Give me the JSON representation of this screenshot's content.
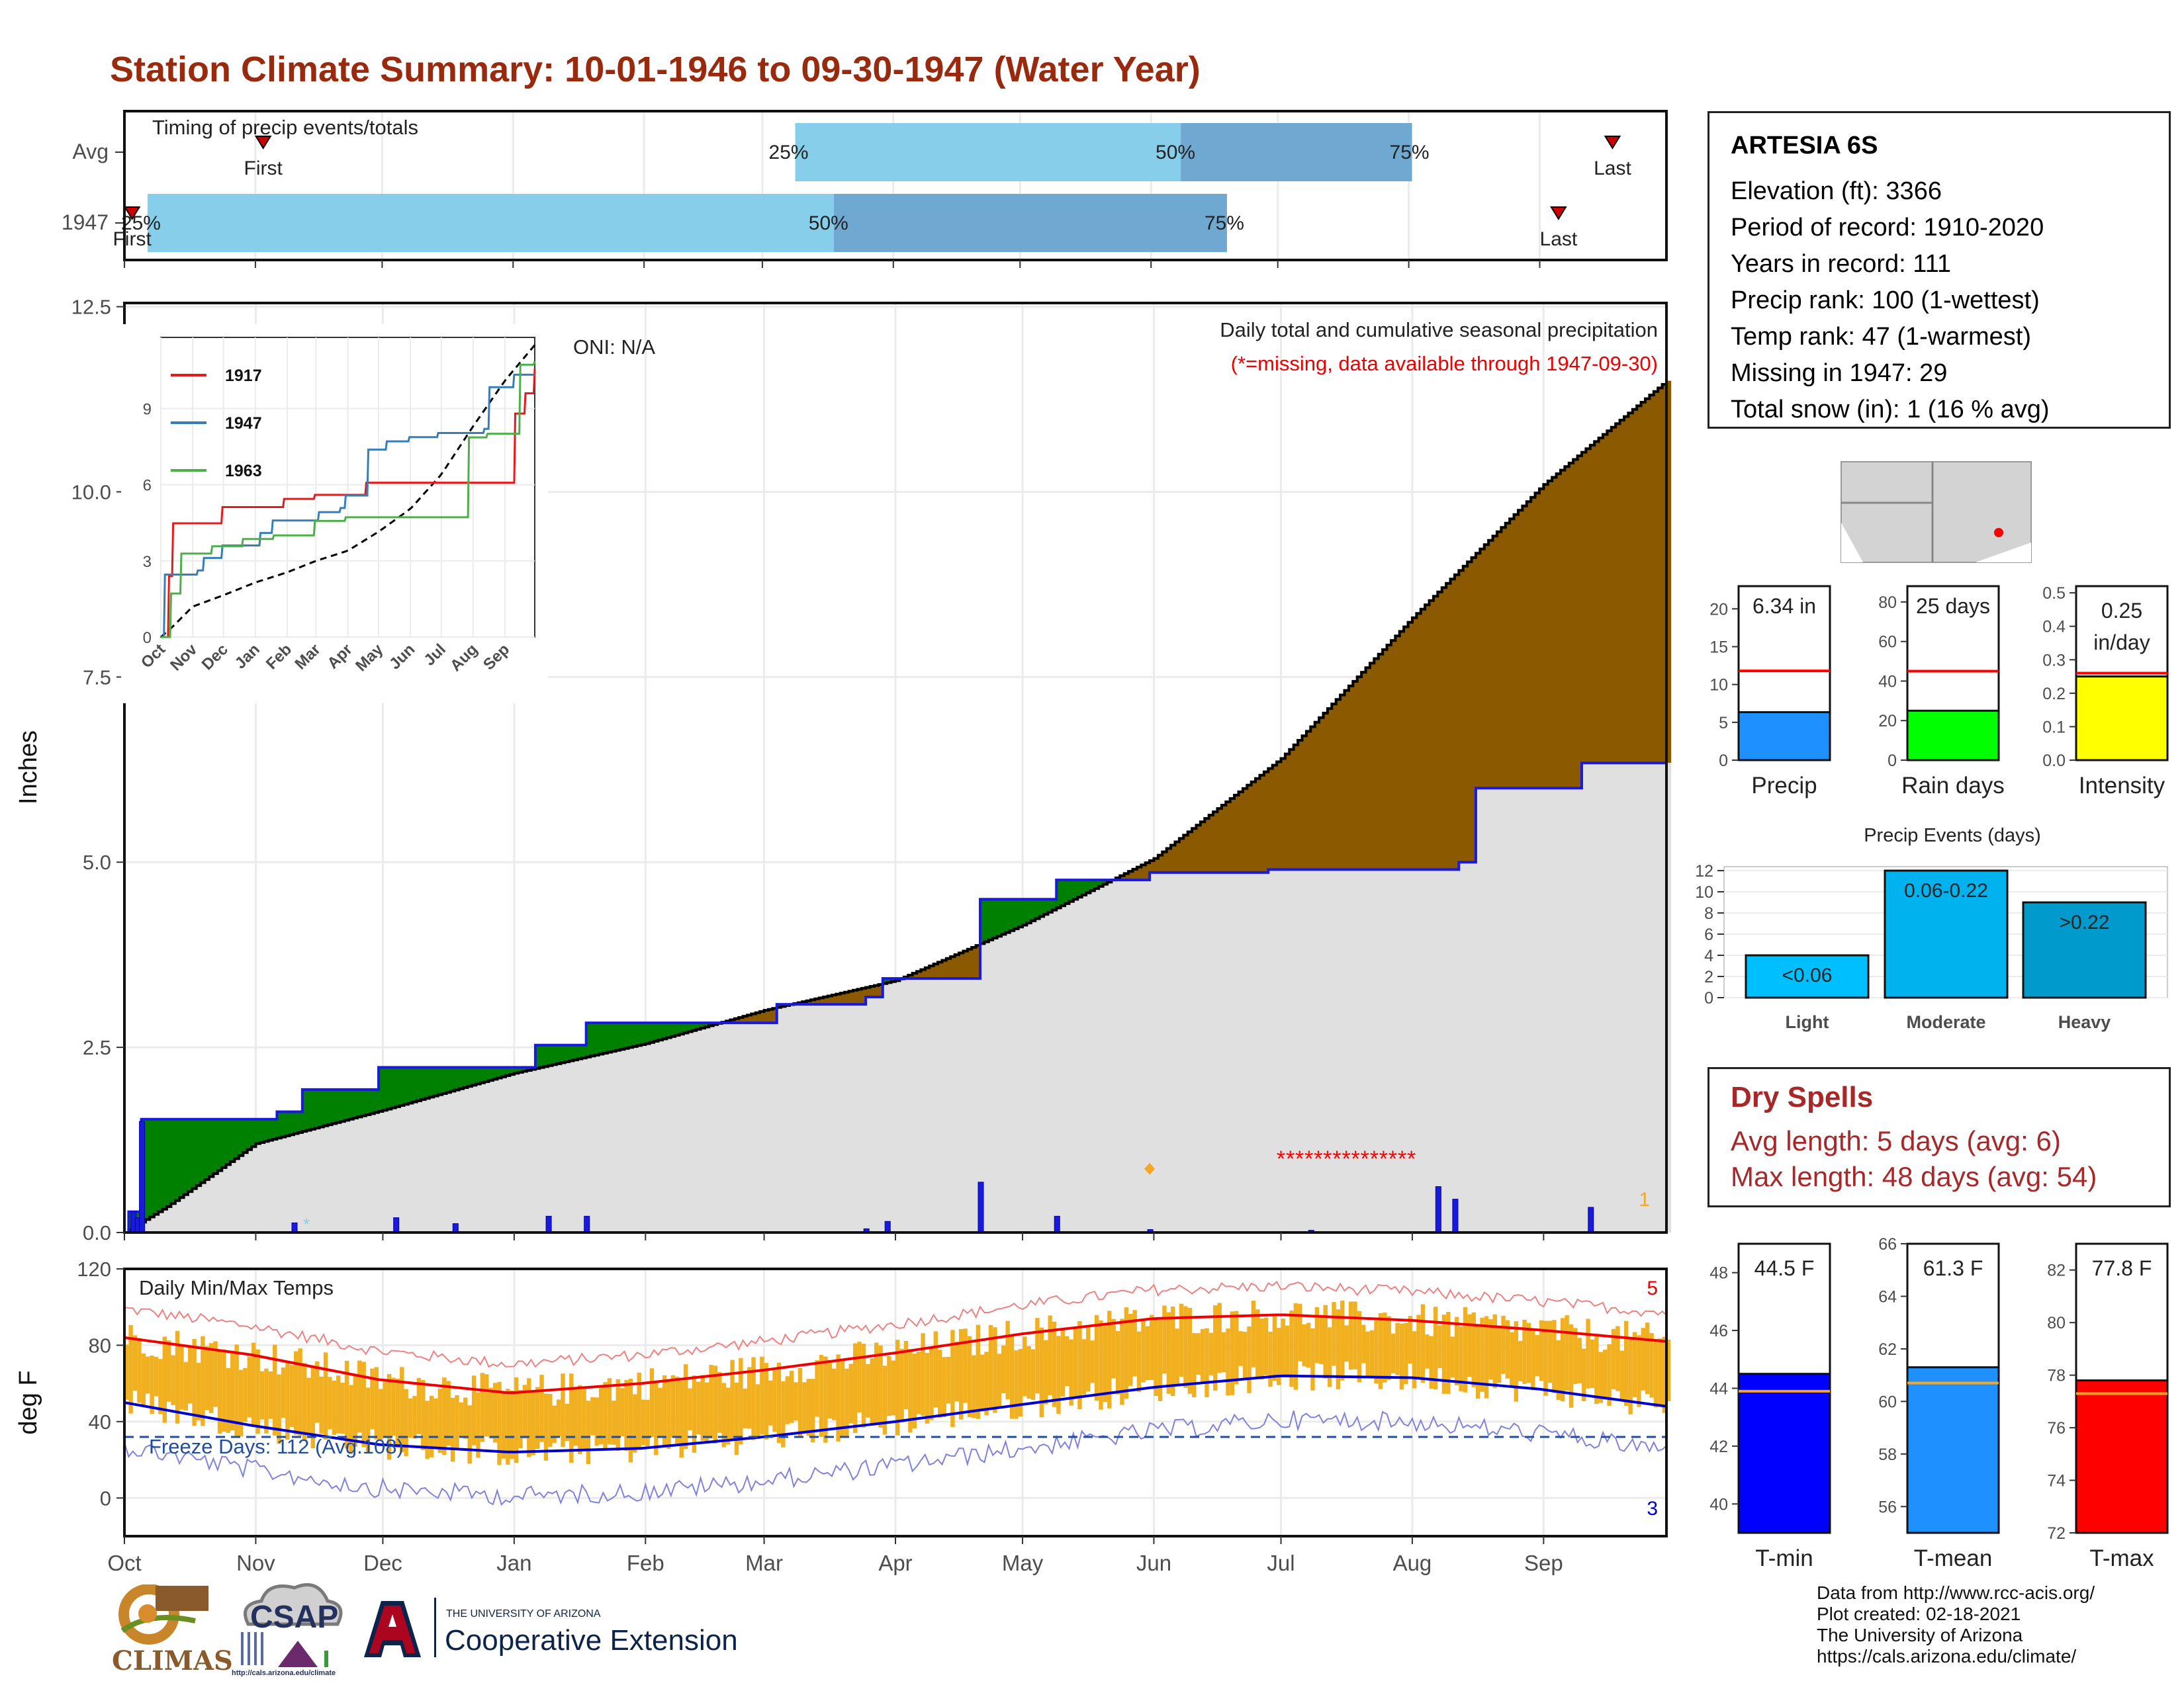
{
  "title": "Station Climate Summary: 10-01-1946 to 09-30-1947 (Water Year)",
  "station": {
    "name": "ARTESIA 6S",
    "lines": [
      "Elevation (ft): 3366",
      "Period of record: 1910-2020",
      "Years in record: 111",
      "Precip rank: 100 (1-wettest)",
      "Temp rank: 47 (1-warmest)",
      "Missing in 1947: 29",
      "Total snow (in): 1 (16 % avg)"
    ]
  },
  "timing_panel": {
    "title": "Timing of precip events/totals",
    "rows": [
      {
        "label": "Avg",
        "first_label": "First",
        "last_label": "Last",
        "first": 0.09,
        "p25": 0.435,
        "p50": 0.685,
        "p75": 0.835,
        "last": 0.965
      },
      {
        "label": "1947",
        "first_label": "First",
        "last_label": "Last",
        "first": 0.005,
        "p25": 0.015,
        "p50": 0.46,
        "p75": 0.715,
        "last": 0.93
      }
    ],
    "pct_labels": [
      "25%",
      "50%",
      "75%"
    ],
    "colors": {
      "light": "#87ceeb",
      "dark": "#6fa8d1",
      "marker": "#cc0000"
    }
  },
  "precip_panel": {
    "subtitle": "Daily total and cumulative seasonal precipitation",
    "note": "(*=missing, data available through 1947-09-30)",
    "oni": "ONI: N/A",
    "ylabel": "Inches",
    "yticks": [
      "0.0",
      "2.5",
      "5.0",
      "7.5",
      "10.0",
      "12.5"
    ],
    "ylim": [
      0,
      12.5
    ],
    "corner_label": "1",
    "colors": {
      "avg_fill": "#e0e0e0",
      "below": "#8b5a00",
      "above": "#008000",
      "obs_line": "#1a1adc",
      "bar": "#1a1adc",
      "missing": "#ff0000"
    }
  },
  "months": [
    "Oct",
    "Nov",
    "Dec",
    "Jan",
    "Feb",
    "Mar",
    "Apr",
    "May",
    "Jun",
    "Jul",
    "Aug",
    "Sep"
  ],
  "inset": {
    "yticks": [
      "0",
      "3",
      "6",
      "9"
    ],
    "months": [
      "Oct",
      "Nov",
      "Dec",
      "Jan",
      "Feb",
      "Mar",
      "Apr",
      "May",
      "Jun",
      "Jul",
      "Aug",
      "Sep"
    ],
    "legend": [
      {
        "name": "1917",
        "color": "#e41a1c"
      },
      {
        "name": "1947",
        "color": "#377eb8"
      },
      {
        "name": "1963",
        "color": "#4daf4a"
      }
    ]
  },
  "temp_panel": {
    "title": "Daily Min/Max Temps",
    "ylabel": "deg F",
    "yticks": [
      "0",
      "40",
      "80",
      "120"
    ],
    "ylim": [
      -20,
      120
    ],
    "freeze_label": "Freeze Days: 112 (Avg.108)",
    "corner_high": "5",
    "corner_low": "3",
    "colors": {
      "bar": "#f0b020",
      "max": "#ee0000",
      "min": "#0000cc",
      "freeze": "#1f4e9e"
    }
  },
  "summary_bars": [
    {
      "label": "Precip",
      "value_text": "6.34 in",
      "value": 6.34,
      "avg": 11.8,
      "ylim": [
        0,
        23
      ],
      "ticks": [
        "0",
        "5",
        "10",
        "15",
        "20"
      ],
      "color": "#1e90ff"
    },
    {
      "label": "Rain days",
      "value_text": "25 days",
      "value": 25,
      "avg": 45,
      "ylim": [
        0,
        88
      ],
      "ticks": [
        "0",
        "20",
        "40",
        "60",
        "80"
      ],
      "color": "#00ff00"
    },
    {
      "label": "Intensity",
      "value_text": "0.25 in/day",
      "value": 0.25,
      "avg": 0.26,
      "ylim": [
        0,
        0.52
      ],
      "ticks": [
        "0.0",
        "0.1",
        "0.2",
        "0.3",
        "0.4",
        "0.5"
      ],
      "color": "#ffff00"
    }
  ],
  "precip_events": {
    "title": "Precip Events (days)",
    "ticks": [
      "0",
      "2",
      "4",
      "6",
      "8",
      "10",
      "12"
    ],
    "bars": [
      {
        "label": "Light",
        "bar_label": "<0.06",
        "value": 4,
        "color": "#00bfff"
      },
      {
        "label": "Moderate",
        "bar_label": "0.06-0.22",
        "value": 12,
        "color": "#00b2ee"
      },
      {
        "label": "Heavy",
        "bar_label": ">0.22",
        "value": 9,
        "color": "#009acd"
      }
    ]
  },
  "dry_spells": {
    "title": "Dry Spells",
    "avg_line": "Avg length: 5 days (avg: 6)",
    "max_line": "Max length: 48 days (avg: 54)"
  },
  "temp_bars": [
    {
      "label": "T-min",
      "value_text": "44.5 F",
      "value": 44.5,
      "avg": 43.9,
      "ylim": [
        39,
        49
      ],
      "ticks": [
        "40",
        "42",
        "44",
        "46",
        "48"
      ],
      "color": "#0000ff"
    },
    {
      "label": "T-mean",
      "value_text": "61.3 F",
      "value": 61.3,
      "avg": 60.7,
      "ylim": [
        55,
        66
      ],
      "ticks": [
        "56",
        "58",
        "60",
        "62",
        "64",
        "66"
      ],
      "color": "#1e90ff"
    },
    {
      "label": "T-max",
      "value_text": "77.8 F",
      "value": 77.8,
      "avg": 77.3,
      "ylim": [
        72,
        83
      ],
      "ticks": [
        "72",
        "74",
        "76",
        "78",
        "80",
        "82"
      ],
      "color": "#ff0000"
    }
  ],
  "credits": [
    "Data from http://www.rcc-acis.org/",
    "Plot created: 02-18-2021",
    "The University of Arizona",
    "https://cals.arizona.edu/climate/"
  ],
  "logos": {
    "climas": "CLIMAS",
    "csap": "CSAP",
    "csap_url": "http://cals.arizona.edu/climate",
    "ua_small": "THE UNIVERSITY OF ARIZONA",
    "ua_big": "Cooperative Extension"
  },
  "chart_data": [
    {
      "type": "area",
      "title": "Daily total and cumulative seasonal precipitation",
      "ylabel": "Inches",
      "ylim": [
        0,
        12.5
      ],
      "x_months": [
        "Oct",
        "Nov",
        "Dec",
        "Jan",
        "Feb",
        "Mar",
        "Apr",
        "May",
        "Jun",
        "Jul",
        "Aug",
        "Sep"
      ],
      "series": [
        {
          "name": "avg_cumulative_knots",
          "x_day": [
            0,
            10,
            31,
            61,
            92,
            123,
            151,
            182,
            212,
            243,
            273,
            304,
            335,
            364
          ],
          "values": [
            0,
            0.35,
            1.2,
            1.65,
            2.15,
            2.55,
            3.0,
            3.4,
            4.15,
            5.05,
            6.4,
            8.3,
            10.1,
            11.5
          ]
        },
        {
          "name": "1947_cumulative_steps",
          "x_day": [
            0,
            1,
            4,
            36,
            42,
            60,
            97,
            109,
            154,
            175,
            179,
            202,
            220,
            242,
            247,
            270,
            315,
            319,
            344,
            364
          ],
          "values": [
            0,
            0.28,
            1.53,
            1.63,
            1.93,
            2.23,
            2.53,
            2.83,
            3.08,
            3.18,
            3.43,
            4.5,
            4.76,
            4.86,
            4.86,
            4.9,
            5.0,
            6.0,
            6.34,
            6.34
          ]
        },
        {
          "name": "daily_precip",
          "x_day": [
            2,
            3,
            4,
            40,
            64,
            78,
            100,
            109,
            175,
            180,
            202,
            220,
            242,
            280,
            310,
            314,
            346
          ],
          "values": [
            0.28,
            0.2,
            1.5,
            0.13,
            0.2,
            0.12,
            0.22,
            0.22,
            0.05,
            0.15,
            0.68,
            0.22,
            0.04,
            0.03,
            0.62,
            0.45,
            0.34
          ]
        }
      ]
    },
    {
      "type": "line",
      "title": "Daily Min/Max Temps",
      "ylabel": "deg F",
      "ylim": [
        -20,
        120
      ],
      "series": [
        {
          "name": "avg_max_knots",
          "x_day": [
            0,
            30,
            60,
            91,
            122,
            151,
            182,
            212,
            243,
            273,
            304,
            334,
            364
          ],
          "values": [
            84,
            75,
            62,
            55,
            60,
            67,
            76,
            86,
            94,
            96,
            93,
            88,
            82
          ]
        },
        {
          "name": "avg_min_knots",
          "x_day": [
            0,
            30,
            60,
            91,
            122,
            151,
            182,
            212,
            243,
            273,
            304,
            334,
            364
          ],
          "values": [
            50,
            38,
            28,
            24,
            26,
            32,
            40,
            49,
            58,
            64,
            63,
            57,
            48
          ]
        },
        {
          "name": "freeze_line",
          "values": [
            32
          ]
        }
      ]
    }
  ]
}
